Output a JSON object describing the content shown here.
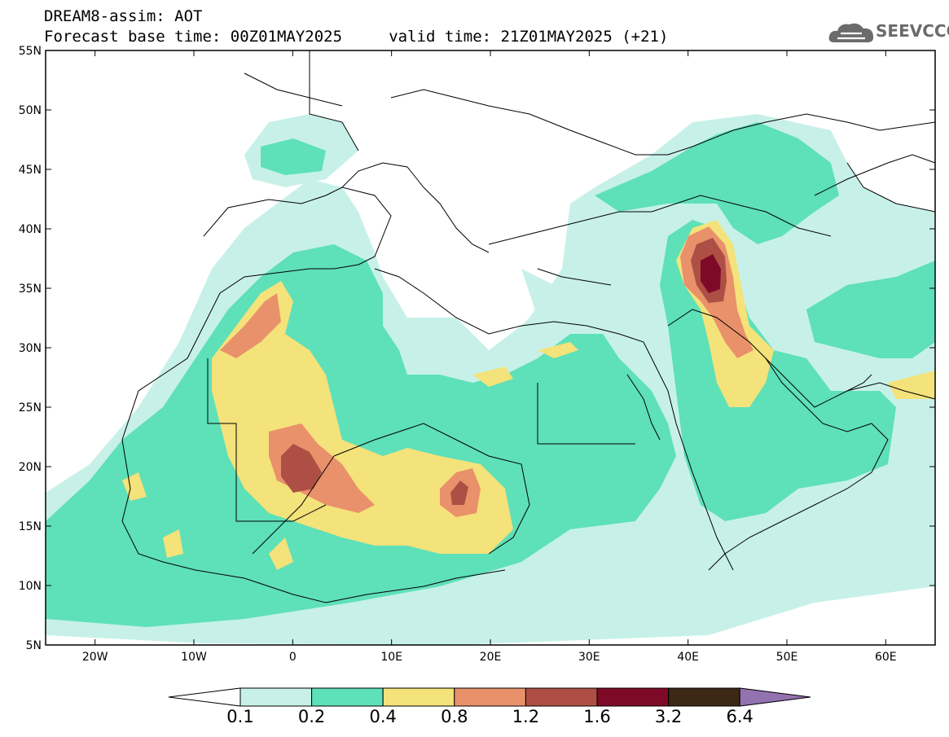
{
  "header": {
    "title_line1": "DREAM8-assim: AOT",
    "title_line2": "Forecast base time: 00Z01MAY2025     valid time: 21Z01MAY2025 (+21)"
  },
  "logo": {
    "text": "SEEVCCC",
    "icon": "cloud-icon"
  },
  "map": {
    "projection": "lat-lon",
    "lon_range": [
      -25,
      65
    ],
    "lat_range": [
      5,
      55
    ],
    "lat_labels": [
      "5N",
      "10N",
      "15N",
      "20N",
      "25N",
      "30N",
      "35N",
      "40N",
      "45N",
      "50N",
      "55N"
    ],
    "lon_labels": [
      "20W",
      "10W",
      "0",
      "10E",
      "20E",
      "30E",
      "40E",
      "50E",
      "60E"
    ],
    "lat_values": [
      5,
      10,
      15,
      20,
      25,
      30,
      35,
      40,
      45,
      50,
      55
    ],
    "lon_values": [
      -20,
      -10,
      0,
      10,
      20,
      30,
      40,
      50,
      60
    ]
  },
  "colorbar": {
    "labels": [
      "0.1",
      "0.2",
      "0.4",
      "0.8",
      "1.2",
      "1.6",
      "3.2",
      "6.4"
    ],
    "colors": [
      "#ffffff",
      "#c7f1e8",
      "#5ee0b9",
      "#f4e27a",
      "#e9916a",
      "#ad4f45",
      "#7f0a28",
      "#3c2814",
      "#9372b0"
    ]
  },
  "fields": {
    "colors": {
      "c02": "#c7f1e8",
      "c04": "#5ee0b9",
      "c08": "#f4e27a",
      "c12": "#e9916a",
      "c16": "#ad4f45",
      "c32": "#7f0a28"
    }
  }
}
